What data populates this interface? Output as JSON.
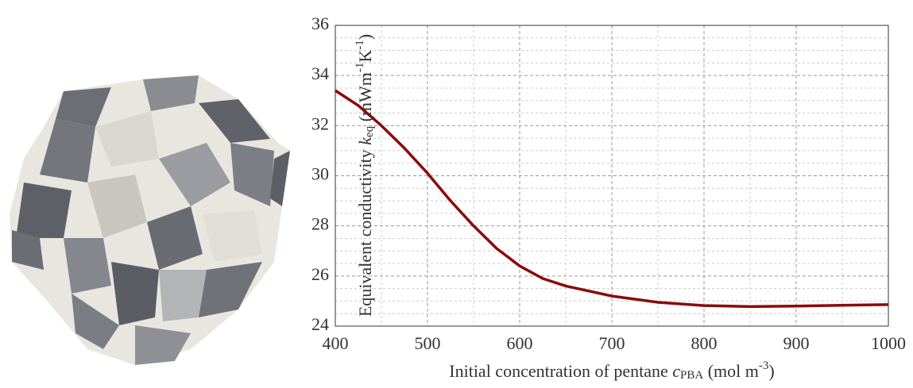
{
  "chart_data": {
    "type": "line",
    "ylabel": [
      "Equivalent conductivity ",
      "k",
      "eq",
      " (mWm",
      "-1",
      "K",
      "-1",
      ")"
    ],
    "xlabel": [
      "Initial concentration of pentane ",
      "c",
      "PBA",
      " (mol m",
      "-3",
      ")"
    ],
    "x": [
      400,
      425,
      450,
      475,
      500,
      525,
      550,
      575,
      600,
      625,
      650,
      700,
      750,
      800,
      850,
      900,
      950,
      1000
    ],
    "series": [
      {
        "color": "#8b0a0a",
        "values": [
          33.4,
          32.8,
          32.0,
          31.1,
          30.1,
          29.0,
          28.0,
          27.1,
          26.4,
          25.9,
          25.6,
          25.2,
          24.95,
          24.82,
          24.78,
          24.8,
          24.83,
          24.86
        ]
      }
    ],
    "xlim": [
      400,
      1000
    ],
    "xticks": [
      400,
      500,
      600,
      700,
      800,
      900,
      1000
    ],
    "ylim": [
      24,
      36
    ],
    "yticks": [
      24,
      26,
      28,
      30,
      32,
      34,
      36
    ],
    "grid": true
  }
}
